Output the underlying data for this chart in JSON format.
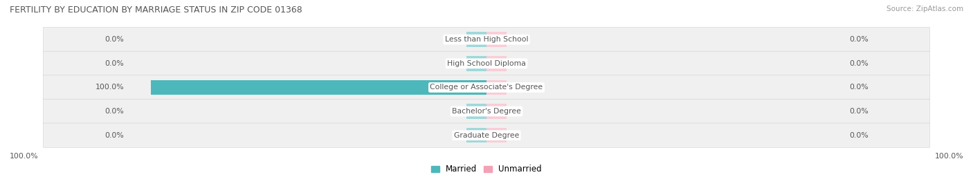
{
  "title": "FERTILITY BY EDUCATION BY MARRIAGE STATUS IN ZIP CODE 01368",
  "source": "Source: ZipAtlas.com",
  "categories": [
    "Less than High School",
    "High School Diploma",
    "College or Associate's Degree",
    "Bachelor's Degree",
    "Graduate Degree"
  ],
  "married_values": [
    0.0,
    0.0,
    100.0,
    0.0,
    0.0
  ],
  "unmarried_values": [
    0.0,
    0.0,
    0.0,
    0.0,
    0.0
  ],
  "married_color": "#4db8bb",
  "married_stub_color": "#9fd8da",
  "unmarried_color": "#f4a0b5",
  "unmarried_stub_color": "#f9cdd7",
  "married_label": "Married",
  "unmarried_label": "Unmarried",
  "title_color": "#555555",
  "text_color": "#555555",
  "axis_max": 100.0,
  "stub_size": 6.0,
  "figsize": [
    14.06,
    2.69
  ],
  "dpi": 100
}
